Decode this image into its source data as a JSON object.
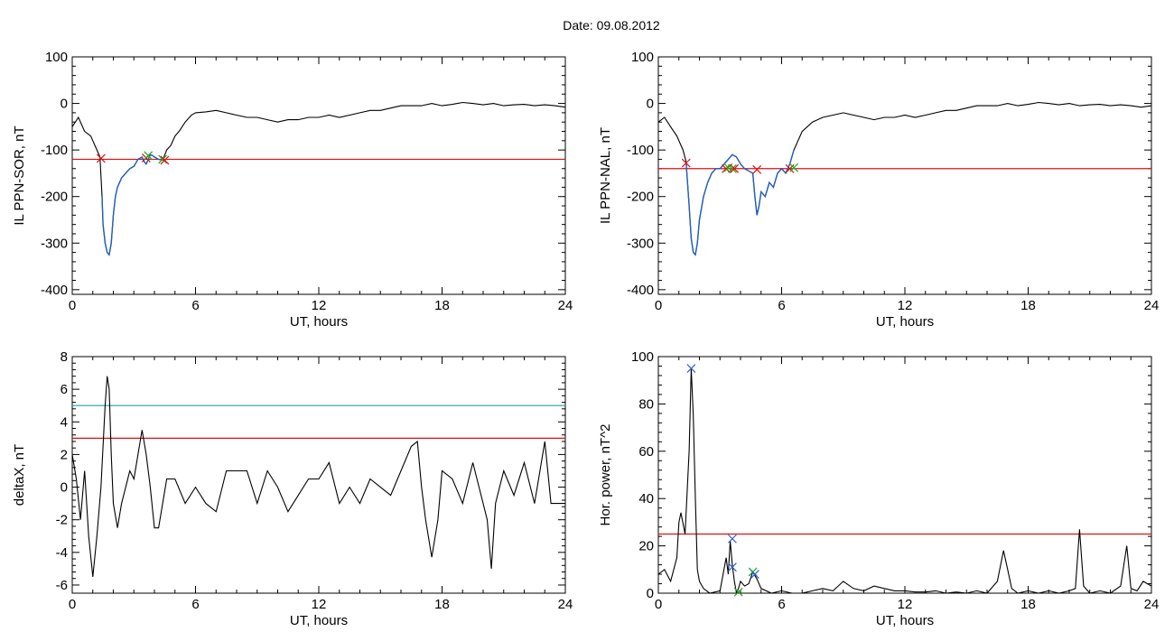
{
  "figure": {
    "title": "Date:  09.08.2012"
  },
  "colors": {
    "data": "#000000",
    "segment": "#1f5fbf",
    "threshold": "#e01010",
    "threshold2": "#1aa3a3",
    "cross_red": "#e01010",
    "cross_green": "#1ca81c",
    "cross_blue": "#2a5fd6"
  },
  "chart_data": [
    {
      "id": "sor",
      "type": "line",
      "ylabel": "IL PPN-SOR, nT",
      "xlabel": "UT, hours",
      "xlim": [
        0,
        24
      ],
      "ylim": [
        -410,
        100
      ],
      "xticks": [
        0,
        6,
        12,
        18,
        24
      ],
      "yticks": [
        100,
        0,
        -100,
        -200,
        -300,
        -400
      ],
      "series": [
        {
          "x": [
            0,
            0.3,
            0.6,
            0.9,
            1.2,
            1.35,
            1.45,
            1.5,
            1.6,
            1.7,
            1.8,
            1.9,
            2.0,
            2.1,
            2.2,
            2.4,
            2.6,
            2.8,
            3.0,
            3.2,
            3.4,
            3.5,
            3.6,
            3.7,
            3.8,
            3.9,
            4.0,
            4.2,
            4.4,
            4.6,
            4.8,
            5.0,
            5.2,
            5.5,
            5.8,
            6.0,
            6.5,
            7,
            7.5,
            8,
            8.5,
            9,
            9.5,
            10,
            10.5,
            11,
            11.5,
            12,
            12.5,
            13,
            13.5,
            14,
            14.5,
            15,
            15.5,
            16,
            16.5,
            17,
            17.5,
            18,
            18.5,
            19,
            19.5,
            20,
            20.5,
            21,
            21.5,
            22,
            22.5,
            23,
            23.5,
            24
          ],
          "y": [
            -50,
            -30,
            -60,
            -70,
            -100,
            -115,
            -200,
            -260,
            -300,
            -320,
            -325,
            -300,
            -240,
            -200,
            -180,
            -160,
            -150,
            -140,
            -135,
            -120,
            -115,
            -125,
            -130,
            -120,
            -110,
            -112,
            -115,
            -120,
            -122,
            -100,
            -90,
            -70,
            -60,
            -40,
            -25,
            -20,
            -18,
            -15,
            -20,
            -25,
            -30,
            -30,
            -35,
            -40,
            -35,
            -35,
            -30,
            -30,
            -25,
            -30,
            -25,
            -20,
            -15,
            -15,
            -10,
            -5,
            -5,
            -5,
            0,
            -5,
            -2,
            2,
            0,
            -3,
            0,
            -5,
            -3,
            -2,
            -5,
            -3,
            -5,
            -8
          ]
        }
      ],
      "highlight_range": [
        1.4,
        4.4
      ],
      "threshold": -120,
      "markers": [
        {
          "x": 1.4,
          "y": -118,
          "color": "red"
        },
        {
          "x": 3.6,
          "y": -117,
          "color": "red"
        },
        {
          "x": 3.7,
          "y": -112,
          "color": "green"
        },
        {
          "x": 4.4,
          "y": -120,
          "color": "green"
        },
        {
          "x": 4.5,
          "y": -122,
          "color": "red"
        }
      ]
    },
    {
      "id": "nal",
      "type": "line",
      "ylabel": "IL PPN-NAL, nT",
      "xlabel": "UT, hours",
      "xlim": [
        0,
        24
      ],
      "ylim": [
        -410,
        100
      ],
      "xticks": [
        0,
        6,
        12,
        18,
        24
      ],
      "yticks": [
        100,
        0,
        -100,
        -200,
        -300,
        -400
      ],
      "series": [
        {
          "x": [
            0,
            0.3,
            0.6,
            0.9,
            1.2,
            1.35,
            1.5,
            1.6,
            1.7,
            1.8,
            1.9,
            2.0,
            2.2,
            2.4,
            2.6,
            2.8,
            3.0,
            3.2,
            3.4,
            3.6,
            3.8,
            4.0,
            4.2,
            4.4,
            4.6,
            4.7,
            4.8,
            4.9,
            5.0,
            5.2,
            5.4,
            5.6,
            5.8,
            6.0,
            6.2,
            6.4,
            6.6,
            6.8,
            7.0,
            7.5,
            8,
            8.5,
            9,
            9.5,
            10,
            10.5,
            11,
            11.5,
            12,
            12.5,
            13,
            13.5,
            14,
            14.5,
            15,
            15.5,
            16,
            16.5,
            17,
            17.5,
            18,
            18.5,
            19,
            19.5,
            20,
            20.5,
            21,
            21.5,
            22,
            22.5,
            23,
            23.5,
            24
          ],
          "y": [
            -40,
            -30,
            -50,
            -70,
            -100,
            -125,
            -220,
            -290,
            -320,
            -325,
            -300,
            -250,
            -200,
            -170,
            -150,
            -140,
            -140,
            -130,
            -120,
            -110,
            -115,
            -130,
            -140,
            -145,
            -150,
            -200,
            -240,
            -220,
            -190,
            -200,
            -170,
            -180,
            -150,
            -140,
            -150,
            -130,
            -100,
            -80,
            -60,
            -40,
            -30,
            -25,
            -20,
            -25,
            -30,
            -35,
            -30,
            -30,
            -25,
            -30,
            -25,
            -20,
            -15,
            -15,
            -10,
            -5,
            -5,
            -5,
            0,
            -5,
            -2,
            2,
            0,
            -3,
            0,
            -5,
            -3,
            -2,
            -5,
            -3,
            -5,
            -8,
            -5
          ]
        }
      ],
      "highlight_range": [
        1.35,
        6.6
      ],
      "threshold": -140,
      "markers": [
        {
          "x": 1.35,
          "y": -128,
          "color": "red"
        },
        {
          "x": 3.3,
          "y": -140,
          "color": "red"
        },
        {
          "x": 3.4,
          "y": -138,
          "color": "green"
        },
        {
          "x": 3.6,
          "y": -140,
          "color": "green"
        },
        {
          "x": 3.7,
          "y": -140,
          "color": "red"
        },
        {
          "x": 4.8,
          "y": -142,
          "color": "red"
        },
        {
          "x": 6.4,
          "y": -140,
          "color": "red"
        },
        {
          "x": 6.6,
          "y": -138,
          "color": "green"
        }
      ]
    },
    {
      "id": "deltax",
      "type": "line",
      "ylabel": "deltaX, nT",
      "xlabel": "UT, hours",
      "xlim": [
        0,
        24
      ],
      "ylim": [
        -6.5,
        8
      ],
      "xticks": [
        0,
        6,
        12,
        18,
        24
      ],
      "yticks": [
        8,
        6,
        4,
        2,
        0,
        -2,
        -4,
        -6
      ],
      "series": [
        {
          "x": [
            0,
            0.2,
            0.4,
            0.6,
            0.8,
            1.0,
            1.2,
            1.4,
            1.6,
            1.7,
            1.8,
            1.9,
            2.0,
            2.2,
            2.4,
            2.6,
            2.8,
            3.0,
            3.2,
            3.4,
            3.6,
            3.8,
            4.0,
            4.2,
            4.4,
            4.6,
            5.0,
            5.5,
            6.0,
            6.5,
            7.0,
            7.5,
            8.0,
            8.5,
            9.0,
            9.5,
            10,
            10.5,
            11,
            11.5,
            12,
            12.5,
            13,
            13.5,
            14,
            14.5,
            15,
            15.5,
            16,
            16.5,
            16.8,
            17.0,
            17.2,
            17.5,
            17.8,
            18.0,
            18.5,
            19,
            19.5,
            20,
            20.2,
            20.4,
            20.6,
            20.8,
            21,
            21.5,
            22,
            22.5,
            23,
            23.3,
            23.6,
            24
          ],
          "y": [
            2,
            0.5,
            -2,
            1,
            -3,
            -5.5,
            -3,
            0,
            5,
            6.8,
            6,
            2,
            -1,
            -2.5,
            -1,
            0,
            1,
            0.5,
            2,
            3.5,
            2,
            0,
            -2.5,
            -2.5,
            -1,
            0.5,
            0.5,
            -1,
            0,
            -1,
            -1.5,
            1,
            1,
            1,
            -1,
            1,
            0,
            -1.5,
            -0.5,
            0.5,
            0.5,
            1.5,
            -1,
            0,
            -1,
            0.5,
            0,
            -0.5,
            1,
            2.5,
            2.8,
            0,
            -2,
            -4.3,
            -2,
            1,
            0.5,
            -1,
            1.5,
            -1,
            -2,
            -5,
            -1,
            0,
            1,
            -0.5,
            1.5,
            -1,
            2.8,
            -1,
            -1,
            -1
          ]
        }
      ],
      "thresholds": [
        {
          "value": 5,
          "color": "teal"
        },
        {
          "value": 3,
          "color": "red"
        }
      ]
    },
    {
      "id": "power",
      "type": "line",
      "ylabel": "Hor. power, nT^2",
      "xlabel": "UT, hours",
      "xlim": [
        0,
        24
      ],
      "ylim": [
        0,
        100
      ],
      "xticks": [
        0,
        6,
        12,
        18,
        24
      ],
      "yticks": [
        100,
        80,
        60,
        40,
        20,
        0
      ],
      "series": [
        {
          "x": [
            0,
            0.3,
            0.6,
            0.9,
            1.0,
            1.1,
            1.3,
            1.5,
            1.6,
            1.7,
            1.8,
            1.9,
            2.0,
            2.2,
            2.5,
            3.0,
            3.3,
            3.4,
            3.5,
            3.6,
            3.7,
            3.8,
            3.9,
            4.0,
            4.2,
            4.4,
            4.6,
            4.8,
            5.0,
            5.5,
            6.0,
            6.5,
            7,
            7.5,
            8,
            8.5,
            9,
            9.5,
            10,
            10.5,
            11,
            11.5,
            12,
            12.5,
            13,
            13.5,
            14,
            14.5,
            15,
            15.5,
            16,
            16.5,
            16.8,
            17,
            17.2,
            17.5,
            18,
            18.5,
            19,
            19.5,
            20,
            20.3,
            20.5,
            20.7,
            21,
            21.5,
            22,
            22.5,
            22.8,
            23,
            23.3,
            23.6,
            24
          ],
          "y": [
            8,
            10,
            5,
            15,
            30,
            34,
            25,
            60,
            95,
            75,
            40,
            10,
            5,
            2,
            0,
            1,
            15,
            8,
            22,
            12,
            5,
            0,
            2,
            5,
            3,
            4,
            9,
            6,
            2,
            0,
            1,
            0,
            0,
            1,
            2,
            1,
            5,
            2,
            1,
            3,
            2,
            1,
            1,
            0.5,
            0.5,
            1,
            0,
            0.5,
            0,
            1,
            0,
            5,
            18,
            10,
            2,
            0,
            1,
            0,
            1,
            0,
            1,
            2,
            27,
            3,
            0,
            1,
            0,
            3,
            20,
            2,
            1,
            5,
            3
          ]
        }
      ],
      "threshold": 25,
      "markers": [
        {
          "x": 1.6,
          "y": 95,
          "color": "blue"
        },
        {
          "x": 3.6,
          "y": 23,
          "color": "blue"
        },
        {
          "x": 3.6,
          "y": 11,
          "color": "blue"
        },
        {
          "x": 3.9,
          "y": 0.5,
          "color": "green"
        },
        {
          "x": 4.6,
          "y": 9,
          "color": "green"
        },
        {
          "x": 4.7,
          "y": 8,
          "color": "blue"
        }
      ]
    }
  ]
}
